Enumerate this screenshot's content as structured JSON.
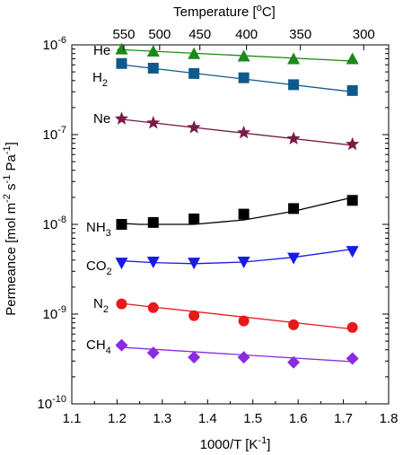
{
  "chart_data": {
    "type": "scatter",
    "title": "",
    "xlabel": "1000/T [K",
    "xlabel_sup": "-1",
    "xlabel_end": "]",
    "ylabel": "Permeance [mol m",
    "ylabel_sup1": "-2",
    "ylabel_mid": " s",
    "ylabel_sup2": "-1",
    "ylabel_mid2": " Pa",
    "ylabel_sup3": "-1",
    "ylabel_end": "]",
    "top_axis_label": "Temperature [",
    "top_axis_label_sup": "o",
    "top_axis_label_end": "C]",
    "xlim": [
      1.1,
      1.8
    ],
    "ylim": [
      1e-10,
      1e-06
    ],
    "yscale": "log",
    "x_ticks": [
      "1.1",
      "1.2",
      "1.3",
      "1.4",
      "1.5",
      "1.6",
      "1.7",
      "1.8"
    ],
    "y_ticks": [
      {
        "base": "10",
        "exp": "-10",
        "value": 1e-10
      },
      {
        "base": "10",
        "exp": "-9",
        "value": 1e-09
      },
      {
        "base": "10",
        "exp": "-8",
        "value": 1e-08
      },
      {
        "base": "10",
        "exp": "-7",
        "value": 1e-07
      },
      {
        "base": "10",
        "exp": "-6",
        "value": 1e-06
      }
    ],
    "top_ticks": [
      {
        "label": "550",
        "x": 1.215
      },
      {
        "label": "500",
        "x": 1.294
      },
      {
        "label": "450",
        "x": 1.383
      },
      {
        "label": "400",
        "x": 1.486
      },
      {
        "label": "350",
        "x": 1.605
      },
      {
        "label": "300",
        "x": 1.745
      }
    ],
    "x": [
      1.21,
      1.28,
      1.37,
      1.48,
      1.59,
      1.72
    ],
    "series": [
      {
        "name": "He",
        "sub": "",
        "marker": "triangle-up",
        "color": "#1a8a1a",
        "values": [
          9e-07,
          8.5e-07,
          8e-07,
          7.5e-07,
          7e-07,
          7e-07
        ],
        "fit": [
          [
            1.2,
            8.9e-07
          ],
          [
            1.72,
            6.6e-07
          ]
        ]
      },
      {
        "name": "H",
        "sub": "2",
        "marker": "square",
        "color": "#0f5a8c",
        "values": [
          6.2e-07,
          5.5e-07,
          4.8e-07,
          4.3e-07,
          3.6e-07,
          3.1e-07
        ],
        "fit": [
          [
            1.2,
            6.1e-07
          ],
          [
            1.72,
            3e-07
          ]
        ]
      },
      {
        "name": "Ne",
        "sub": "",
        "marker": "star",
        "color": "#7a1a4a",
        "values": [
          1.5e-07,
          1.35e-07,
          1.2e-07,
          1.05e-07,
          9e-08,
          7.8e-08
        ],
        "fit": [
          [
            1.2,
            1.5e-07
          ],
          [
            1.72,
            7.6e-08
          ]
        ]
      },
      {
        "name": "NH",
        "sub": "3",
        "marker": "square",
        "color": "#000000",
        "values": [
          1e-08,
          1.05e-08,
          1.15e-08,
          1.3e-08,
          1.5e-08,
          1.85e-08
        ],
        "fit": [
          [
            1.2,
            1.03e-08
          ],
          [
            1.25,
            1e-08
          ],
          [
            1.37,
            1e-08
          ],
          [
            1.48,
            1.12e-08
          ],
          [
            1.59,
            1.4e-08
          ],
          [
            1.72,
            2e-08
          ]
        ]
      },
      {
        "name": "CO",
        "sub": "2",
        "marker": "triangle-down",
        "color": "#1a1ae6",
        "values": [
          3.7e-09,
          3.8e-09,
          3.7e-09,
          3.8e-09,
          4.2e-09,
          5e-09
        ],
        "fit": [
          [
            1.2,
            3.95e-09
          ],
          [
            1.28,
            3.75e-09
          ],
          [
            1.37,
            3.65e-09
          ],
          [
            1.48,
            3.8e-09
          ],
          [
            1.59,
            4.3e-09
          ],
          [
            1.72,
            5.3e-09
          ]
        ]
      },
      {
        "name": "N",
        "sub": "2",
        "marker": "circle",
        "color": "#e61a1a",
        "values": [
          1.3e-09,
          1.18e-09,
          9.6e-10,
          8.4e-10,
          7.6e-10,
          7.1e-10
        ],
        "fit": [
          [
            1.2,
            1.33e-09
          ],
          [
            1.72,
            6.8e-10
          ]
        ]
      },
      {
        "name": "CH",
        "sub": "4",
        "marker": "diamond",
        "color": "#8a2be2",
        "values": [
          4.5e-10,
          3.7e-10,
          3.3e-10,
          3.3e-10,
          2.9e-10,
          3.2e-10
        ],
        "fit": [
          [
            1.2,
            4.3e-10
          ],
          [
            1.72,
            2.95e-10
          ]
        ]
      }
    ]
  }
}
